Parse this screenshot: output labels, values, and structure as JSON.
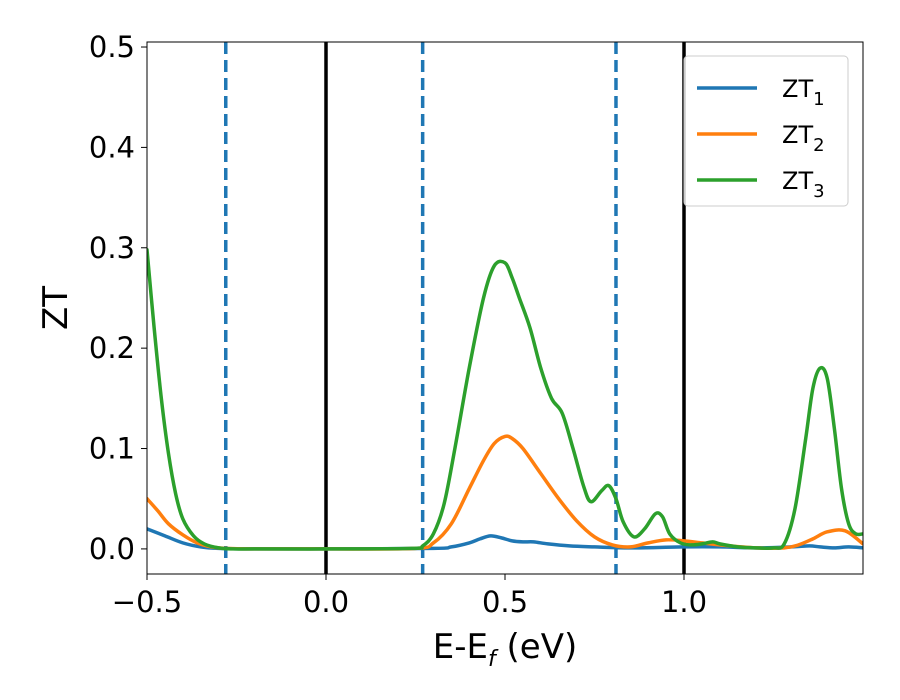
{
  "chart_data": {
    "type": "line",
    "xlabel_main": "E-E",
    "xlabel_sub": "f",
    "xlabel_unit": " (eV)",
    "ylabel": "ZT",
    "xlim": [
      -0.5,
      1.5
    ],
    "ylim": [
      -0.025,
      0.505
    ],
    "xticks": [
      {
        "value": -0.5,
        "label": "−0.5"
      },
      {
        "value": 0.0,
        "label": "0.0"
      },
      {
        "value": 0.5,
        "label": "0.5"
      },
      {
        "value": 1.0,
        "label": "1.0"
      }
    ],
    "yticks": [
      {
        "value": 0.0,
        "label": "0.0"
      },
      {
        "value": 0.1,
        "label": "0.1"
      },
      {
        "value": 0.2,
        "label": "0.2"
      },
      {
        "value": 0.3,
        "label": "0.3"
      },
      {
        "value": 0.4,
        "label": "0.4"
      },
      {
        "value": 0.5,
        "label": "0.5"
      }
    ],
    "grid": false,
    "legend_position": "top-right",
    "vlines_solid": [
      0.0,
      1.0
    ],
    "vlines_dashed": [
      -0.28,
      0.27,
      0.81
    ],
    "solid_line_color": "#000000",
    "dashed_line_color": "#1f77b4",
    "series": [
      {
        "name": "ZT",
        "subscript": "1",
        "color": "#1f77b4",
        "x": [
          -0.5,
          -0.45,
          -0.4,
          -0.35,
          -0.3,
          -0.2,
          0.0,
          0.3,
          0.35,
          0.4,
          0.43,
          0.46,
          0.49,
          0.52,
          0.55,
          0.58,
          0.62,
          0.68,
          0.75,
          0.85,
          1.0,
          1.1,
          1.2,
          1.3,
          1.35,
          1.38,
          1.42,
          1.46,
          1.5
        ],
        "y": [
          0.02,
          0.013,
          0.006,
          0.002,
          0.0005,
          0.0,
          0.0,
          0.0005,
          0.002,
          0.006,
          0.01,
          0.013,
          0.011,
          0.008,
          0.007,
          0.007,
          0.005,
          0.003,
          0.002,
          0.001,
          0.002,
          0.002,
          0.001,
          0.002,
          0.003,
          0.002,
          0.001,
          0.002,
          0.001
        ]
      },
      {
        "name": "ZT",
        "subscript": "2",
        "color": "#ff7f0e",
        "x": [
          -0.5,
          -0.47,
          -0.44,
          -0.4,
          -0.36,
          -0.32,
          -0.28,
          -0.2,
          0.0,
          0.25,
          0.3,
          0.35,
          0.4,
          0.44,
          0.47,
          0.5,
          0.52,
          0.55,
          0.6,
          0.65,
          0.7,
          0.75,
          0.8,
          0.85,
          0.9,
          0.95,
          1.0,
          1.05,
          1.1,
          1.2,
          1.28,
          1.32,
          1.36,
          1.4,
          1.45,
          1.5
        ],
        "y": [
          0.05,
          0.038,
          0.025,
          0.014,
          0.006,
          0.002,
          0.0005,
          0.0,
          0.0,
          0.0005,
          0.006,
          0.025,
          0.06,
          0.088,
          0.105,
          0.112,
          0.11,
          0.1,
          0.075,
          0.05,
          0.028,
          0.012,
          0.004,
          0.002,
          0.006,
          0.009,
          0.008,
          0.006,
          0.004,
          0.001,
          0.001,
          0.004,
          0.01,
          0.017,
          0.018,
          0.005
        ]
      },
      {
        "name": "ZT",
        "subscript": "3",
        "color": "#2ca02c",
        "x": [
          -0.5,
          -0.48,
          -0.46,
          -0.44,
          -0.42,
          -0.4,
          -0.37,
          -0.34,
          -0.3,
          -0.26,
          -0.2,
          0.0,
          0.24,
          0.27,
          0.3,
          0.33,
          0.36,
          0.4,
          0.44,
          0.47,
          0.5,
          0.52,
          0.54,
          0.57,
          0.6,
          0.63,
          0.66,
          0.69,
          0.72,
          0.74,
          0.77,
          0.79,
          0.81,
          0.83,
          0.86,
          0.89,
          0.92,
          0.94,
          0.96,
          0.99,
          1.02,
          1.05,
          1.08,
          1.1,
          1.15,
          1.2,
          1.25,
          1.28,
          1.31,
          1.34,
          1.36,
          1.38,
          1.4,
          1.42,
          1.44,
          1.46,
          1.48,
          1.5
        ],
        "y": [
          0.298,
          0.22,
          0.15,
          0.095,
          0.055,
          0.03,
          0.013,
          0.005,
          0.001,
          0.0,
          0.0,
          0.0,
          0.0005,
          0.003,
          0.015,
          0.045,
          0.1,
          0.18,
          0.25,
          0.282,
          0.285,
          0.27,
          0.25,
          0.22,
          0.18,
          0.15,
          0.135,
          0.1,
          0.062,
          0.047,
          0.058,
          0.063,
          0.05,
          0.027,
          0.012,
          0.02,
          0.035,
          0.032,
          0.015,
          0.006,
          0.004,
          0.005,
          0.007,
          0.005,
          0.002,
          0.001,
          0.001,
          0.005,
          0.04,
          0.11,
          0.16,
          0.18,
          0.17,
          0.12,
          0.06,
          0.025,
          0.015,
          0.015
        ]
      }
    ]
  }
}
